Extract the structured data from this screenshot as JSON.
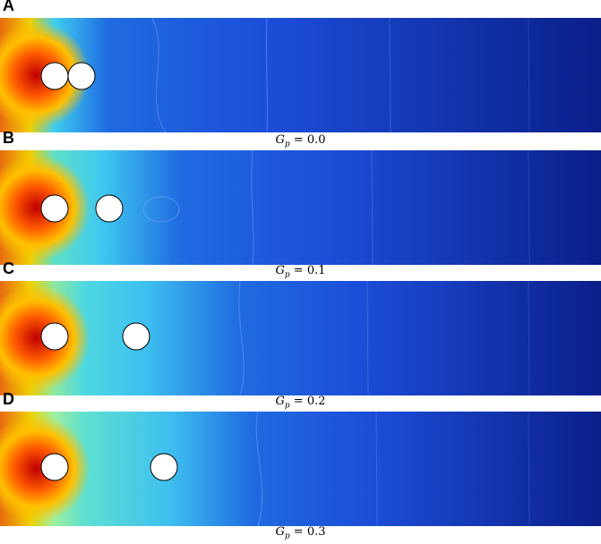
{
  "panels": [
    {
      "letter": "A",
      "gp_value": "0.0"
    },
    {
      "letter": "B",
      "gp_value": "0.1"
    },
    {
      "letter": "C",
      "gp_value": "0.2"
    },
    {
      "letter": "D",
      "gp_value": "0.3"
    }
  ],
  "caption": {
    "symbol": "G",
    "subscript": "p",
    "equals": " = "
  },
  "colors": {
    "hot": "#c80000",
    "warm": "#ff7a00",
    "yellow": "#f5e600",
    "cyan": "#33c8ff",
    "blue": "#1c4dd8",
    "deep_blue": "#0a1f8a",
    "particle": "#ffffff"
  }
}
